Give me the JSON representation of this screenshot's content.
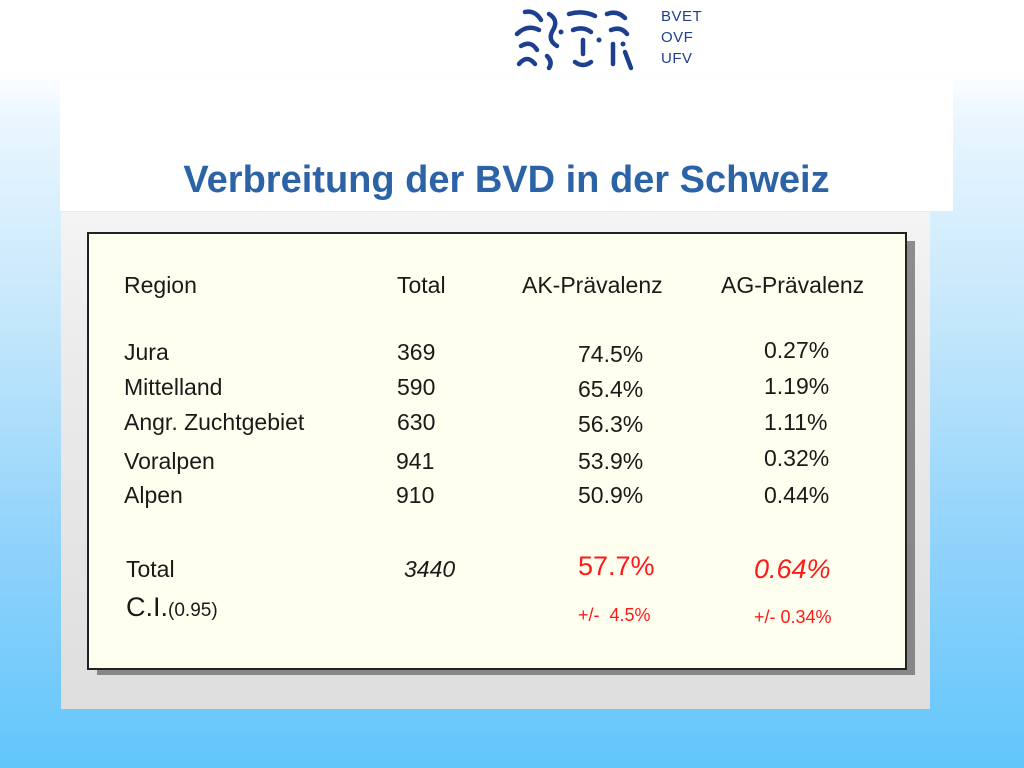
{
  "logo": {
    "icon": "bvet-faces-logo",
    "lines": [
      "BVET",
      "OVF",
      "UFV"
    ],
    "color": "#1d3f8f"
  },
  "title": "Verbreitung der BVD in der Schweiz",
  "table": {
    "headers": [
      "Region",
      "Total",
      "AK-Prävalenz",
      "AG-Prävalenz"
    ],
    "rows": [
      {
        "region": "Jura",
        "total": "369",
        "ak": "74.5%",
        "ag": "0.27%"
      },
      {
        "region": "Mittelland",
        "total": "590",
        "ak": "65.4%",
        "ag": "1.19%"
      },
      {
        "region": "Angr. Zuchtgebiet",
        "total": "630",
        "ak": "56.3%",
        "ag": "1.11%"
      },
      {
        "region": "Voralpen",
        "total": "941",
        "ak": "53.9%",
        "ag": "0.32%"
      },
      {
        "region": "Alpen",
        "total": "910",
        "ak": "50.9%",
        "ag": "0.44%"
      }
    ],
    "summary": {
      "label": "Total",
      "total": "3440",
      "ak": "57.7%",
      "ag": "0.64%"
    },
    "ci": {
      "label_main": "C.I.",
      "label_sub": "(0.95)",
      "ak": "+/-  4.5%",
      "ag": "+/- 0.34%"
    },
    "highlight_color": "#ff1a1a"
  }
}
